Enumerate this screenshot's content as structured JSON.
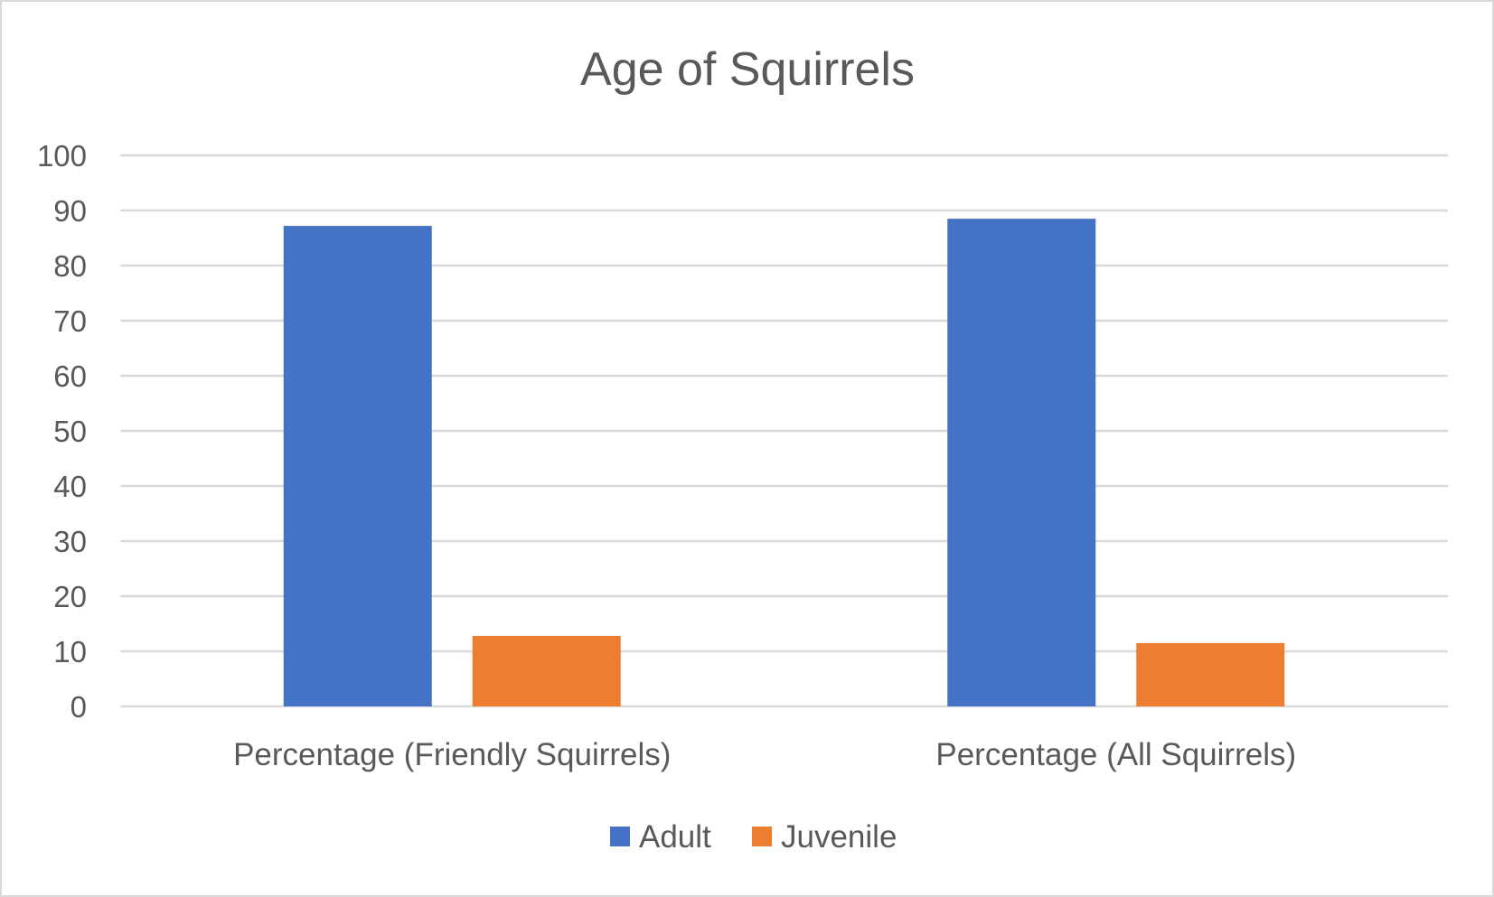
{
  "chart_data": {
    "type": "bar",
    "title": "Age of Squirrels",
    "xlabel": "",
    "ylabel": "",
    "categories": [
      "Percentage (Friendly Squirrels)",
      "Percentage (All Squirrels)"
    ],
    "series": [
      {
        "name": "Adult",
        "values": [
          87.2,
          88.5
        ],
        "color": "#4472c4"
      },
      {
        "name": "Juvenile",
        "values": [
          12.8,
          11.5
        ],
        "color": "#ed7d31"
      }
    ],
    "ylim": [
      0,
      100
    ],
    "yticks": [
      "0",
      "10",
      "20",
      "30",
      "40",
      "50",
      "60",
      "70",
      "80",
      "90",
      "100"
    ],
    "grid": true,
    "legend_position": "bottom",
    "colors": {
      "gridline": "#d9d9d9",
      "text": "#595959",
      "border": "#d9d9d9"
    }
  }
}
